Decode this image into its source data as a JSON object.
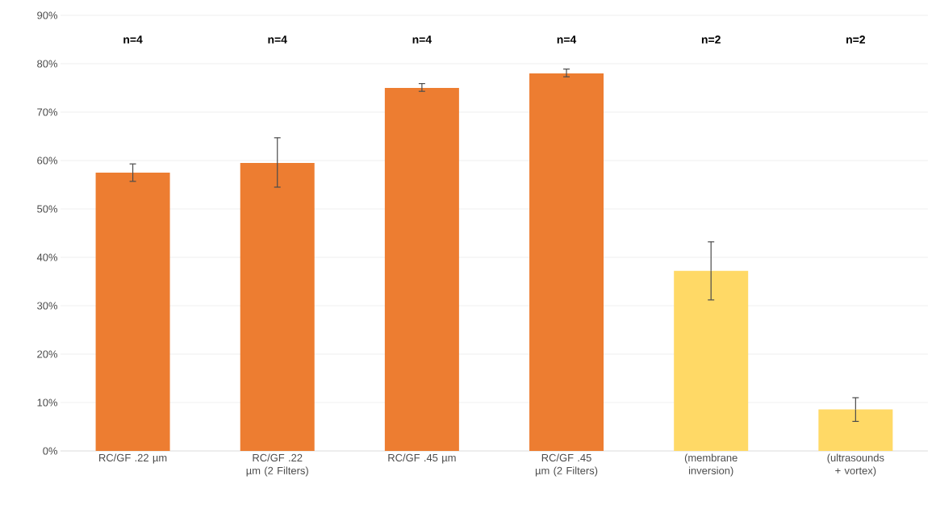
{
  "chart_data": {
    "type": "bar",
    "categories": [
      "RC/GF .22 µm",
      "RC/GF .22 µm (2 Filters)",
      "RC/GF .45 µm",
      "RC/GF .45 µm (2 Filters)",
      "(membrane inversion)",
      "(ultrasounds + vortex)"
    ],
    "values": [
      57.5,
      59.5,
      75,
      78,
      37.2,
      8.6
    ],
    "errors": [
      [
        55.7,
        59.3
      ],
      [
        54.5,
        64.7
      ],
      [
        74.3,
        75.9
      ],
      [
        77.3,
        78.9
      ],
      [
        31.2,
        43.2
      ],
      [
        6.1,
        11
      ]
    ],
    "colors": [
      "#ed7d31",
      "#ed7d31",
      "#ed7d31",
      "#ed7d31",
      "#ffd966",
      "#ffd966"
    ],
    "ylim": [
      0,
      90
    ],
    "yticks": [
      {
        "value": 0,
        "label": "0%"
      },
      {
        "value": 10,
        "label": "10%"
      },
      {
        "value": 20,
        "label": "20%"
      },
      {
        "value": 30,
        "label": "30%"
      },
      {
        "value": 40,
        "label": "40%"
      },
      {
        "value": 50,
        "label": "50%"
      },
      {
        "value": 60,
        "label": "60%"
      },
      {
        "value": 70,
        "label": "70%"
      },
      {
        "value": 80,
        "label": "80%"
      },
      {
        "value": 90,
        "label": "90%"
      }
    ],
    "grid": "y",
    "annotations": [
      "n=4",
      "n=4",
      "n=4",
      "n=4",
      "n=2",
      "n=2"
    ]
  }
}
